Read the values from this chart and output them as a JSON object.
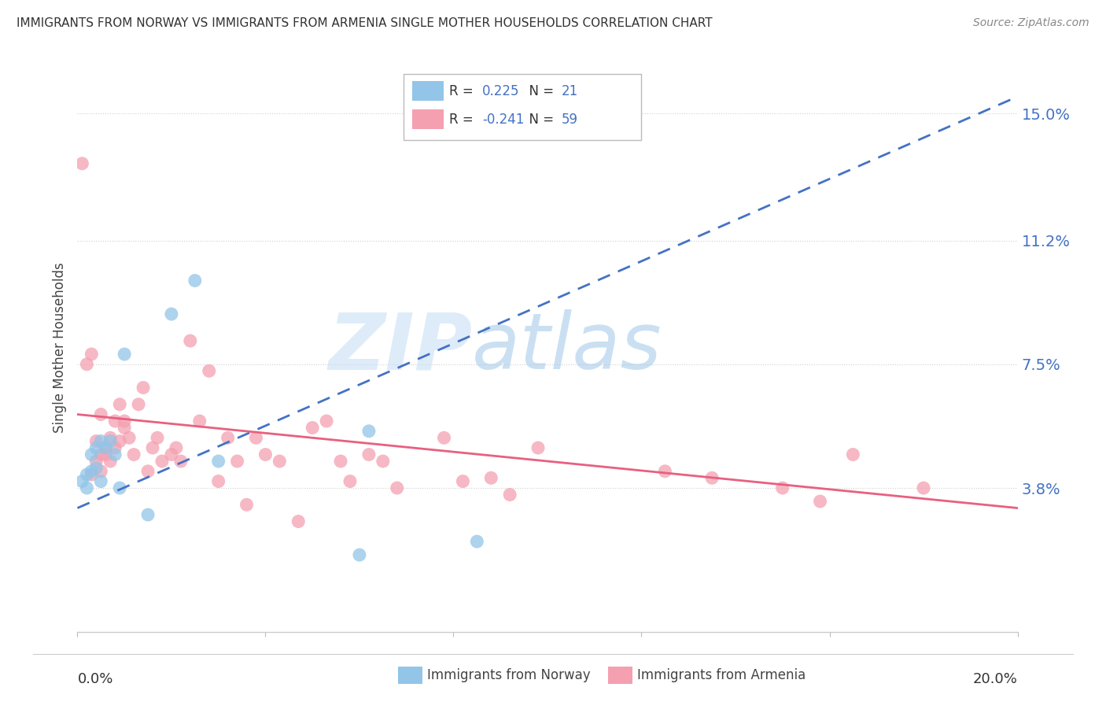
{
  "title": "IMMIGRANTS FROM NORWAY VS IMMIGRANTS FROM ARMENIA SINGLE MOTHER HOUSEHOLDS CORRELATION CHART",
  "source": "Source: ZipAtlas.com",
  "ylabel": "Single Mother Households",
  "ytick_values": [
    0.038,
    0.075,
    0.112,
    0.15
  ],
  "ytick_labels": [
    "3.8%",
    "7.5%",
    "11.2%",
    "15.0%"
  ],
  "xlim": [
    0.0,
    0.2
  ],
  "ylim": [
    -0.005,
    0.165
  ],
  "norway_R": 0.225,
  "norway_N": 21,
  "armenia_R": -0.241,
  "armenia_N": 59,
  "norway_color": "#92C5E8",
  "armenia_color": "#F4A0B0",
  "norway_line_color": "#4472C4",
  "armenia_line_color": "#E86080",
  "watermark_zip": "ZIP",
  "watermark_atlas": "atlas",
  "norway_points_x": [
    0.001,
    0.002,
    0.002,
    0.003,
    0.003,
    0.004,
    0.004,
    0.005,
    0.005,
    0.006,
    0.007,
    0.008,
    0.009,
    0.01,
    0.015,
    0.02,
    0.025,
    0.03,
    0.06,
    0.062,
    0.085
  ],
  "norway_points_y": [
    0.04,
    0.042,
    0.038,
    0.048,
    0.043,
    0.05,
    0.044,
    0.052,
    0.04,
    0.05,
    0.052,
    0.048,
    0.038,
    0.078,
    0.03,
    0.09,
    0.1,
    0.046,
    0.018,
    0.055,
    0.022
  ],
  "armenia_points_x": [
    0.001,
    0.002,
    0.003,
    0.003,
    0.004,
    0.004,
    0.005,
    0.005,
    0.005,
    0.006,
    0.006,
    0.007,
    0.007,
    0.008,
    0.008,
    0.009,
    0.009,
    0.01,
    0.01,
    0.011,
    0.012,
    0.013,
    0.014,
    0.015,
    0.016,
    0.017,
    0.018,
    0.02,
    0.021,
    0.022,
    0.024,
    0.026,
    0.028,
    0.03,
    0.032,
    0.034,
    0.036,
    0.038,
    0.04,
    0.043,
    0.047,
    0.05,
    0.053,
    0.056,
    0.058,
    0.062,
    0.065,
    0.068,
    0.078,
    0.082,
    0.088,
    0.092,
    0.098,
    0.125,
    0.135,
    0.15,
    0.158,
    0.165,
    0.18
  ],
  "armenia_points_y": [
    0.135,
    0.075,
    0.078,
    0.042,
    0.052,
    0.046,
    0.048,
    0.043,
    0.06,
    0.05,
    0.048,
    0.053,
    0.046,
    0.058,
    0.05,
    0.052,
    0.063,
    0.058,
    0.056,
    0.053,
    0.048,
    0.063,
    0.068,
    0.043,
    0.05,
    0.053,
    0.046,
    0.048,
    0.05,
    0.046,
    0.082,
    0.058,
    0.073,
    0.04,
    0.053,
    0.046,
    0.033,
    0.053,
    0.048,
    0.046,
    0.028,
    0.056,
    0.058,
    0.046,
    0.04,
    0.048,
    0.046,
    0.038,
    0.053,
    0.04,
    0.041,
    0.036,
    0.05,
    0.043,
    0.041,
    0.038,
    0.034,
    0.048,
    0.038
  ],
  "norway_line_x": [
    0.0,
    0.2
  ],
  "norway_line_y": [
    0.032,
    0.155
  ],
  "armenia_line_x": [
    0.0,
    0.2
  ],
  "armenia_line_y": [
    0.06,
    0.032
  ]
}
